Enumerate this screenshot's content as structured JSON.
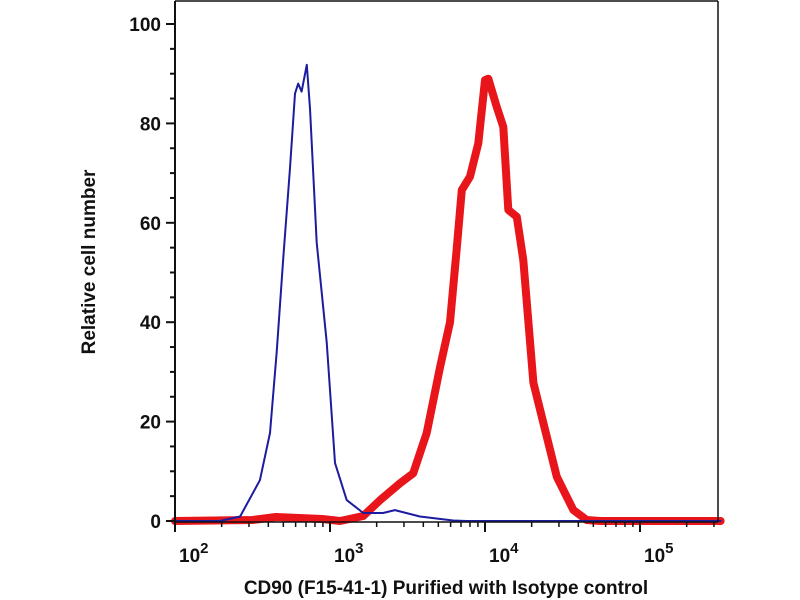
{
  "chart_data": {
    "type": "line",
    "title": "",
    "xlabel": "CD90 (F15-41-1) Purified with Isotype control",
    "ylabel": "Relative cell number",
    "x_scale": "log10",
    "xlim_log10": [
      2.0,
      5.52
    ],
    "ylim": [
      0,
      100
    ],
    "grid": false,
    "legend": "none",
    "y_ticks": [
      0,
      20,
      40,
      60,
      80,
      100
    ],
    "y_tick_labels": [
      "0",
      "20",
      "40",
      "60",
      "80",
      "100"
    ],
    "x_ticks_log10": [
      2,
      3,
      4,
      5
    ],
    "x_tick_labels": [
      {
        "base": "10",
        "exp": "2"
      },
      {
        "base": "10",
        "exp": "3"
      },
      {
        "base": "10",
        "exp": "4"
      },
      {
        "base": "10",
        "exp": "5"
      }
    ],
    "series": [
      {
        "name": "Isotype control",
        "color": "#1c1c9e",
        "x_log10": [
          2.0,
          2.29,
          2.42,
          2.548,
          2.613,
          2.656,
          2.699,
          2.742,
          2.774,
          2.795,
          2.817,
          2.85,
          2.871,
          2.914,
          2.979,
          3.032,
          3.108,
          3.215,
          3.342,
          3.419,
          3.58,
          3.794,
          3.88,
          5.52
        ],
        "y": [
          0,
          0,
          0.9,
          8.2,
          17.7,
          34,
          53,
          71,
          86,
          88,
          86.4,
          91.8,
          83,
          56,
          36,
          11.7,
          4.2,
          1.6,
          1.6,
          2.2,
          0.9,
          0.1,
          0,
          0
        ]
      },
      {
        "name": "CD90 (F15-41-1) Purified",
        "color": "#e8161a",
        "x_log10": [
          2.0,
          2.5,
          2.65,
          2.95,
          3.065,
          3.215,
          3.323,
          3.452,
          3.537,
          3.624,
          3.71,
          3.774,
          3.817,
          3.85,
          3.903,
          3.957,
          4.0,
          4.021,
          4.075,
          4.118,
          4.15,
          4.205,
          4.247,
          4.312,
          4.377,
          4.463,
          4.57,
          4.656,
          4.742,
          5.52
        ],
        "y": [
          0,
          0.2,
          0.8,
          0.4,
          0,
          1,
          4.2,
          7.6,
          9.6,
          17.7,
          31,
          40,
          54.5,
          66.6,
          69.3,
          76,
          88.7,
          89,
          83.4,
          79.3,
          62.6,
          61.2,
          52.5,
          27.8,
          19.7,
          8.9,
          2.2,
          0.2,
          0,
          0
        ]
      }
    ]
  }
}
